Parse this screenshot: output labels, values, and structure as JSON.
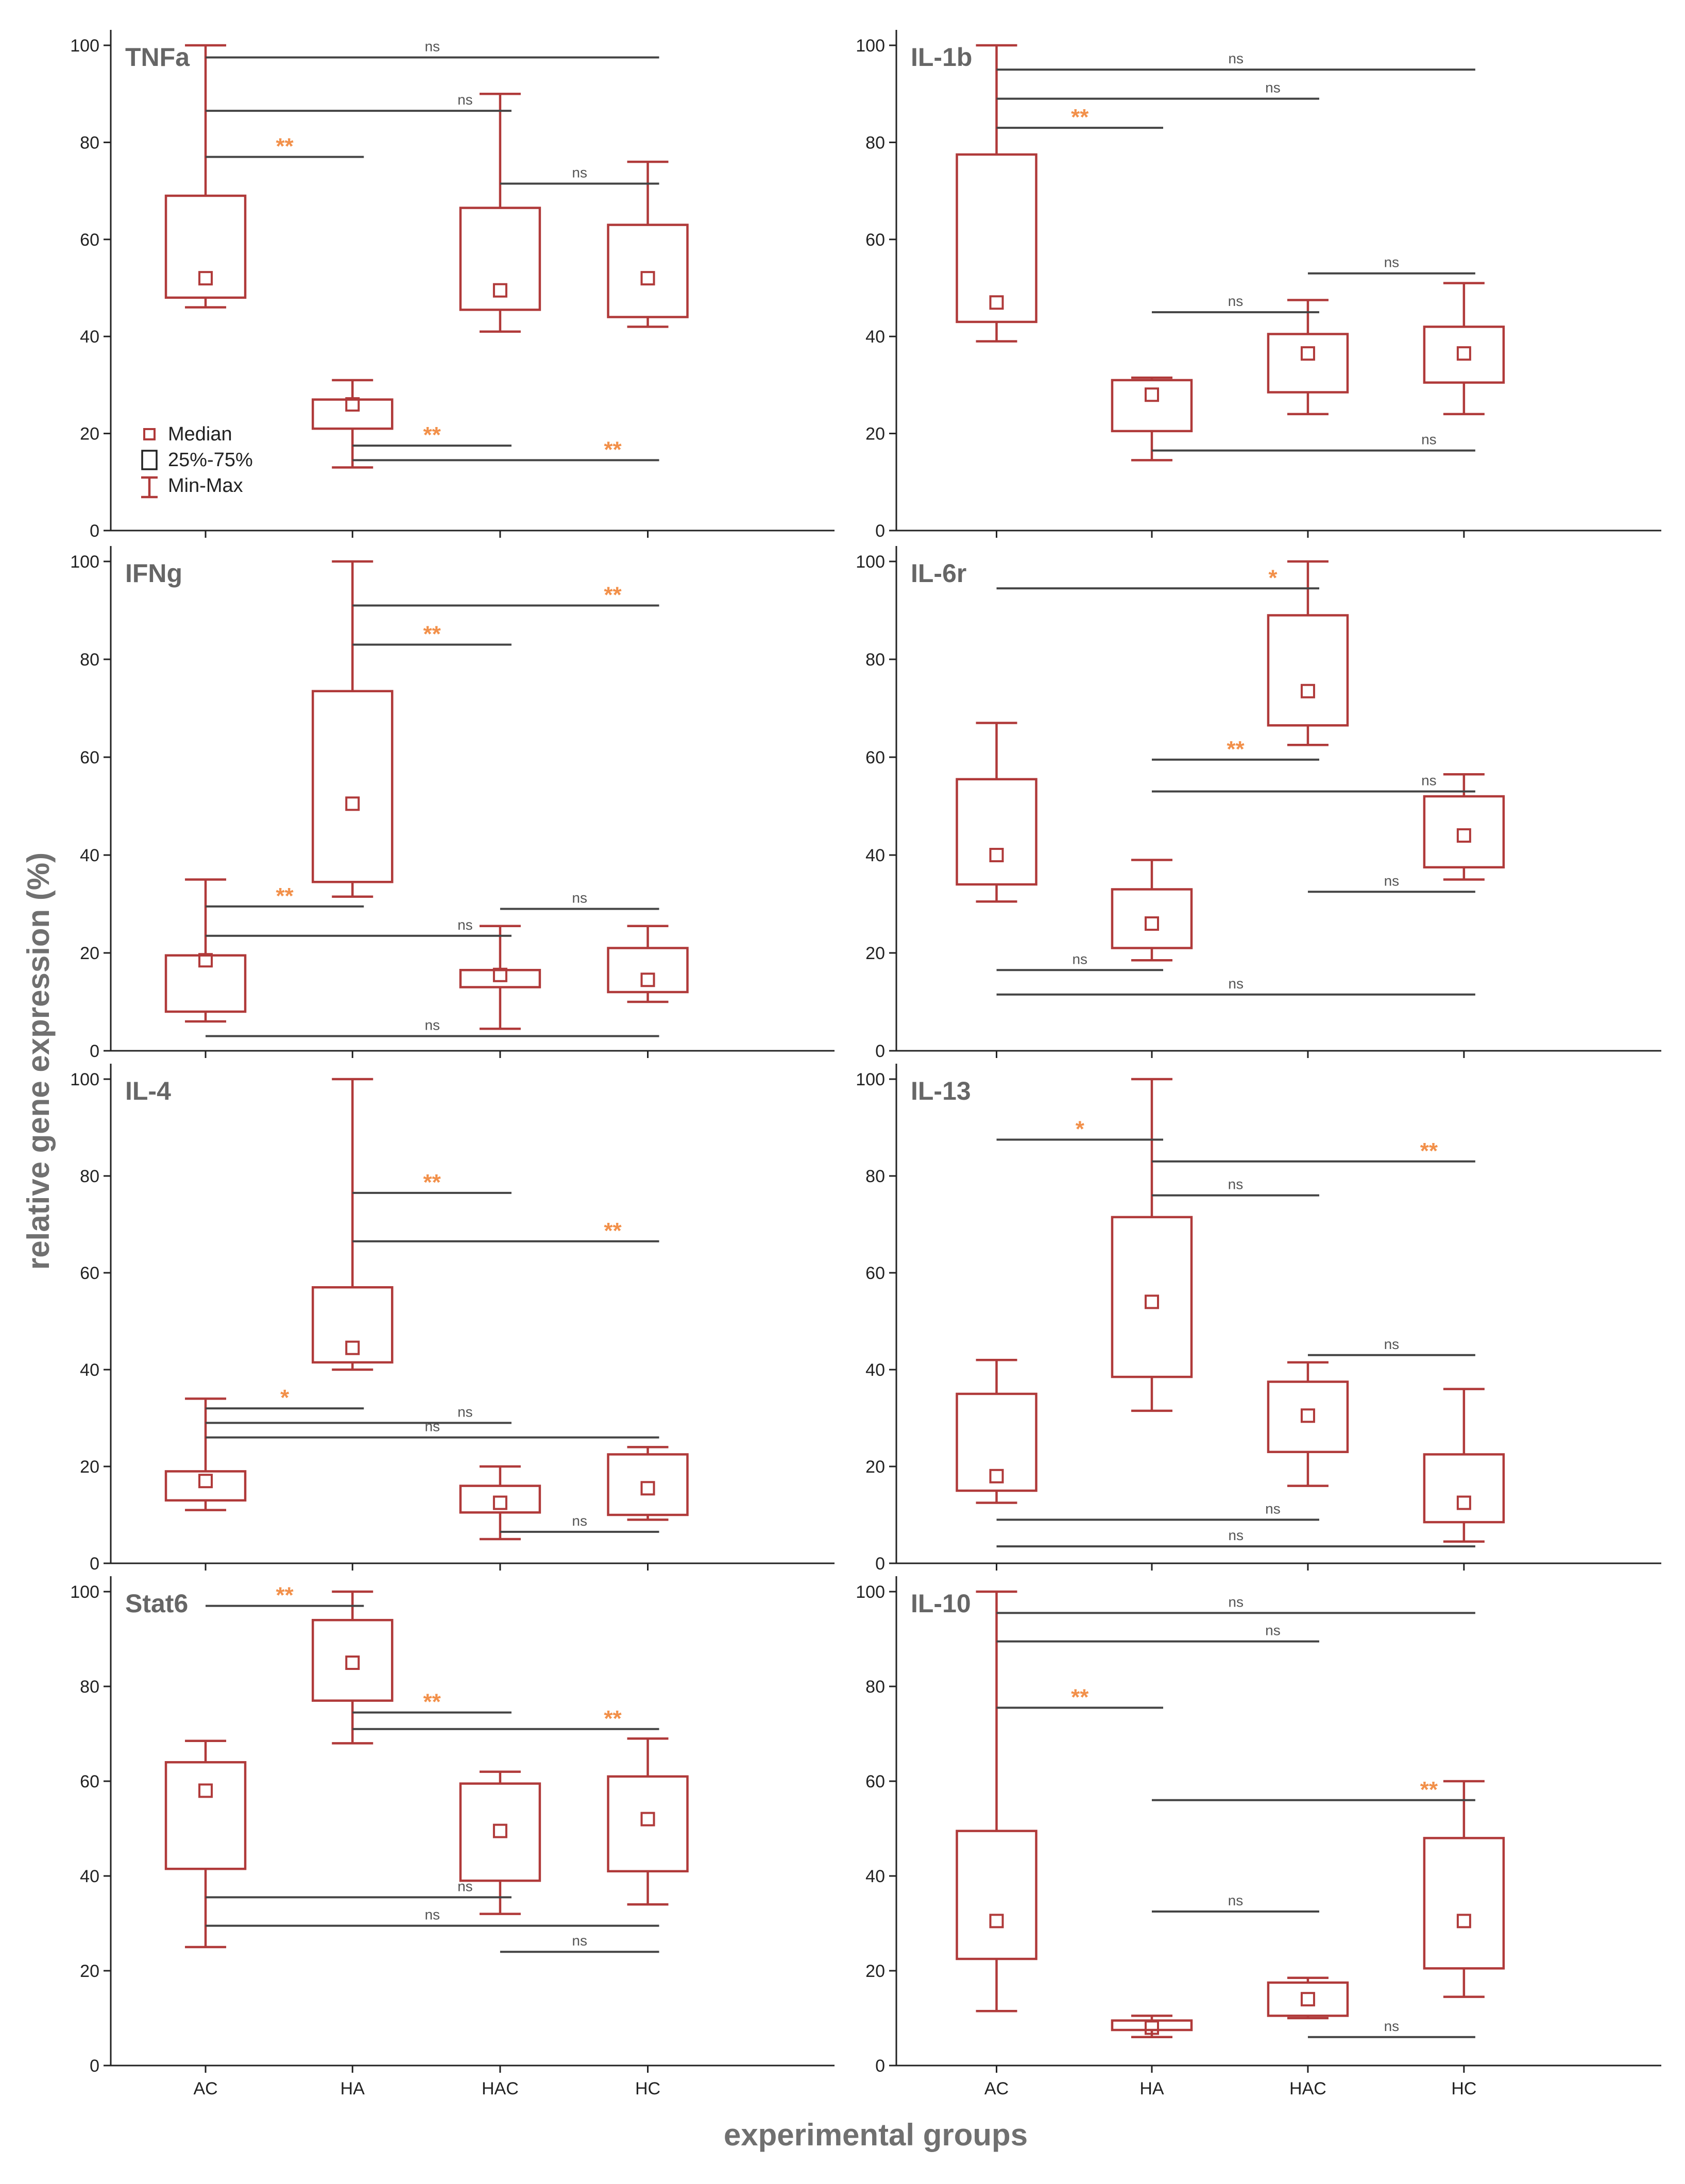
{
  "figure": {
    "ylabel": "relative gene expression (%)",
    "xlabel": "experimental groups",
    "legend": {
      "median": "Median",
      "box": "25%-75%",
      "whisker": "Min-Max"
    },
    "colors": {
      "box": "#b03a3a",
      "star": "#f2904a",
      "line": "#444444"
    }
  },
  "chart_data": [
    {
      "type": "box",
      "title": "TNFa",
      "categories": [
        "AC",
        "HA",
        "HAC",
        "HC"
      ],
      "ylim": [
        0,
        100
      ],
      "yticks": [
        0,
        20,
        40,
        60,
        80,
        100
      ],
      "boxes": [
        {
          "min": 46,
          "q1": 48,
          "median": 52,
          "q3": 69,
          "max": 100
        },
        {
          "min": 13,
          "q1": 21,
          "median": 26,
          "q3": 27,
          "max": 31
        },
        {
          "min": 41,
          "q1": 45.5,
          "median": 49.5,
          "q3": 66.5,
          "max": 90
        },
        {
          "min": 42,
          "q1": 44,
          "median": 52,
          "q3": 63,
          "max": 76
        }
      ],
      "significance": [
        {
          "from": 0,
          "to": 3,
          "y": 97.5,
          "label": "ns"
        },
        {
          "from": 0,
          "to": 2,
          "y": 86.5,
          "label": "ns"
        },
        {
          "from": 0,
          "to": 1,
          "y": 77,
          "label": "**"
        },
        {
          "from": 2,
          "to": 3,
          "y": 71.5,
          "label": "ns"
        },
        {
          "from": 1,
          "to": 2,
          "y": 17.5,
          "label": "**"
        },
        {
          "from": 1,
          "to": 3,
          "y": 14.5,
          "label": "**"
        }
      ]
    },
    {
      "type": "box",
      "title": "IL-1b",
      "categories": [
        "AC",
        "HA",
        "HAC",
        "HC"
      ],
      "ylim": [
        0,
        100
      ],
      "yticks": [
        0,
        20,
        40,
        60,
        80,
        100
      ],
      "boxes": [
        {
          "min": 39,
          "q1": 43,
          "median": 47,
          "q3": 77.5,
          "max": 100
        },
        {
          "min": 14.5,
          "q1": 20.5,
          "median": 28,
          "q3": 31,
          "max": 31.5
        },
        {
          "min": 24,
          "q1": 28.5,
          "median": 36.5,
          "q3": 40.5,
          "max": 47.5
        },
        {
          "min": 24,
          "q1": 30.5,
          "median": 36.5,
          "q3": 42,
          "max": 51
        }
      ],
      "significance": [
        {
          "from": 0,
          "to": 3,
          "y": 95,
          "label": "ns"
        },
        {
          "from": 0,
          "to": 2,
          "y": 89,
          "label": "ns"
        },
        {
          "from": 0,
          "to": 1,
          "y": 83,
          "label": "**"
        },
        {
          "from": 2,
          "to": 3,
          "y": 53,
          "label": "ns"
        },
        {
          "from": 1,
          "to": 2,
          "y": 45,
          "label": "ns"
        },
        {
          "from": 1,
          "to": 3,
          "y": 16.5,
          "label": "ns"
        }
      ]
    },
    {
      "type": "box",
      "title": "IFNg",
      "categories": [
        "AC",
        "HA",
        "HAC",
        "HC"
      ],
      "ylim": [
        0,
        100
      ],
      "yticks": [
        0,
        20,
        40,
        60,
        80,
        100
      ],
      "boxes": [
        {
          "min": 6,
          "q1": 8,
          "median": 18.5,
          "q3": 19.5,
          "max": 35
        },
        {
          "min": 31.5,
          "q1": 34.5,
          "median": 50.5,
          "q3": 73.5,
          "max": 100
        },
        {
          "min": 4.5,
          "q1": 13,
          "median": 15.5,
          "q3": 16.5,
          "max": 25.5
        },
        {
          "min": 10,
          "q1": 12,
          "median": 14.5,
          "q3": 21,
          "max": 25.5
        }
      ],
      "significance": [
        {
          "from": 1,
          "to": 3,
          "y": 91,
          "label": "**"
        },
        {
          "from": 1,
          "to": 2,
          "y": 83,
          "label": "**"
        },
        {
          "from": 0,
          "to": 1,
          "y": 29.5,
          "label": "**"
        },
        {
          "from": 2,
          "to": 3,
          "y": 29,
          "label": "ns"
        },
        {
          "from": 0,
          "to": 2,
          "y": 23.5,
          "label": "ns"
        },
        {
          "from": 0,
          "to": 3,
          "y": 3,
          "label": "ns"
        }
      ]
    },
    {
      "type": "box",
      "title": "IL-6r",
      "categories": [
        "AC",
        "HA",
        "HAC",
        "HC"
      ],
      "ylim": [
        0,
        100
      ],
      "yticks": [
        0,
        20,
        40,
        60,
        80,
        100
      ],
      "boxes": [
        {
          "min": 30.5,
          "q1": 34,
          "median": 40,
          "q3": 55.5,
          "max": 67
        },
        {
          "min": 18.5,
          "q1": 21,
          "median": 26,
          "q3": 33,
          "max": 39
        },
        {
          "min": 62.5,
          "q1": 66.5,
          "median": 73.5,
          "q3": 89,
          "max": 100
        },
        {
          "min": 35,
          "q1": 37.5,
          "median": 44,
          "q3": 52,
          "max": 56.5
        }
      ],
      "significance": [
        {
          "from": 0,
          "to": 2,
          "y": 94.5,
          "label": "*"
        },
        {
          "from": 1,
          "to": 2,
          "y": 59.5,
          "label": "**"
        },
        {
          "from": 1,
          "to": 3,
          "y": 53,
          "label": "ns"
        },
        {
          "from": 2,
          "to": 3,
          "y": 32.5,
          "label": "ns"
        },
        {
          "from": 0,
          "to": 1,
          "y": 16.5,
          "label": "ns"
        },
        {
          "from": 0,
          "to": 3,
          "y": 11.5,
          "label": "ns"
        }
      ]
    },
    {
      "type": "box",
      "title": "IL-4",
      "categories": [
        "AC",
        "HA",
        "HAC",
        "HC"
      ],
      "ylim": [
        0,
        100
      ],
      "yticks": [
        0,
        20,
        40,
        60,
        80,
        100
      ],
      "boxes": [
        {
          "min": 11,
          "q1": 13,
          "median": 17,
          "q3": 19,
          "max": 34
        },
        {
          "min": 40,
          "q1": 41.5,
          "median": 44.5,
          "q3": 57,
          "max": 100
        },
        {
          "min": 5,
          "q1": 10.5,
          "median": 12.5,
          "q3": 16,
          "max": 20
        },
        {
          "min": 9,
          "q1": 10,
          "median": 15.5,
          "q3": 22.5,
          "max": 24
        }
      ],
      "significance": [
        {
          "from": 1,
          "to": 2,
          "y": 76.5,
          "label": "**"
        },
        {
          "from": 1,
          "to": 3,
          "y": 66.5,
          "label": "**"
        },
        {
          "from": 0,
          "to": 1,
          "y": 32,
          "label": "*"
        },
        {
          "from": 0,
          "to": 2,
          "y": 29,
          "label": "ns"
        },
        {
          "from": 0,
          "to": 3,
          "y": 26,
          "label": "ns"
        },
        {
          "from": 2,
          "to": 3,
          "y": 6.5,
          "label": "ns"
        }
      ]
    },
    {
      "type": "box",
      "title": "IL-13",
      "categories": [
        "AC",
        "HA",
        "HAC",
        "HC"
      ],
      "ylim": [
        0,
        100
      ],
      "yticks": [
        0,
        20,
        40,
        60,
        80,
        100
      ],
      "boxes": [
        {
          "min": 12.5,
          "q1": 15,
          "median": 18,
          "q3": 35,
          "max": 42
        },
        {
          "min": 31.5,
          "q1": 38.5,
          "median": 54,
          "q3": 71.5,
          "max": 100
        },
        {
          "min": 16,
          "q1": 23,
          "median": 30.5,
          "q3": 37.5,
          "max": 41.5
        },
        {
          "min": 4.5,
          "q1": 8.5,
          "median": 12.5,
          "q3": 22.5,
          "max": 36
        }
      ],
      "significance": [
        {
          "from": 0,
          "to": 1,
          "y": 87.5,
          "label": "*"
        },
        {
          "from": 1,
          "to": 3,
          "y": 83,
          "label": "**"
        },
        {
          "from": 1,
          "to": 2,
          "y": 76,
          "label": "ns"
        },
        {
          "from": 2,
          "to": 3,
          "y": 43,
          "label": "ns"
        },
        {
          "from": 0,
          "to": 2,
          "y": 9,
          "label": "ns"
        },
        {
          "from": 0,
          "to": 3,
          "y": 3.5,
          "label": "ns"
        }
      ]
    },
    {
      "type": "box",
      "title": "Stat6",
      "categories": [
        "AC",
        "HA",
        "HAC",
        "HC"
      ],
      "ylim": [
        0,
        100
      ],
      "yticks": [
        0,
        20,
        40,
        60,
        80,
        100
      ],
      "boxes": [
        {
          "min": 25,
          "q1": 41.5,
          "median": 58,
          "q3": 64,
          "max": 68.5
        },
        {
          "min": 68,
          "q1": 77,
          "median": 85,
          "q3": 94,
          "max": 100
        },
        {
          "min": 32,
          "q1": 39,
          "median": 49.5,
          "q3": 59.5,
          "max": 62
        },
        {
          "min": 34,
          "q1": 41,
          "median": 52,
          "q3": 61,
          "max": 69
        }
      ],
      "significance": [
        {
          "from": 0,
          "to": 1,
          "y": 97,
          "label": "**"
        },
        {
          "from": 1,
          "to": 2,
          "y": 74.5,
          "label": "**"
        },
        {
          "from": 1,
          "to": 3,
          "y": 71,
          "label": "**"
        },
        {
          "from": 0,
          "to": 2,
          "y": 35.5,
          "label": "ns"
        },
        {
          "from": 0,
          "to": 3,
          "y": 29.5,
          "label": "ns"
        },
        {
          "from": 2,
          "to": 3,
          "y": 24,
          "label": "ns"
        }
      ]
    },
    {
      "type": "box",
      "title": "IL-10",
      "categories": [
        "AC",
        "HA",
        "HAC",
        "HC"
      ],
      "ylim": [
        0,
        100
      ],
      "yticks": [
        0,
        20,
        40,
        60,
        80,
        100
      ],
      "boxes": [
        {
          "min": 11.5,
          "q1": 22.5,
          "median": 30.5,
          "q3": 49.5,
          "max": 100
        },
        {
          "min": 6,
          "q1": 7.5,
          "median": 8,
          "q3": 9.5,
          "max": 10.5
        },
        {
          "min": 10,
          "q1": 10.5,
          "median": 14,
          "q3": 17.5,
          "max": 18.5
        },
        {
          "min": 14.5,
          "q1": 20.5,
          "median": 30.5,
          "q3": 48,
          "max": 60
        }
      ],
      "significance": [
        {
          "from": 0,
          "to": 3,
          "y": 95.5,
          "label": "ns"
        },
        {
          "from": 0,
          "to": 2,
          "y": 89.5,
          "label": "ns"
        },
        {
          "from": 0,
          "to": 1,
          "y": 75.5,
          "label": "**"
        },
        {
          "from": 1,
          "to": 3,
          "y": 56,
          "label": "**"
        },
        {
          "from": 1,
          "to": 2,
          "y": 32.5,
          "label": "ns"
        },
        {
          "from": 2,
          "to": 3,
          "y": 6,
          "label": "ns"
        }
      ]
    }
  ]
}
